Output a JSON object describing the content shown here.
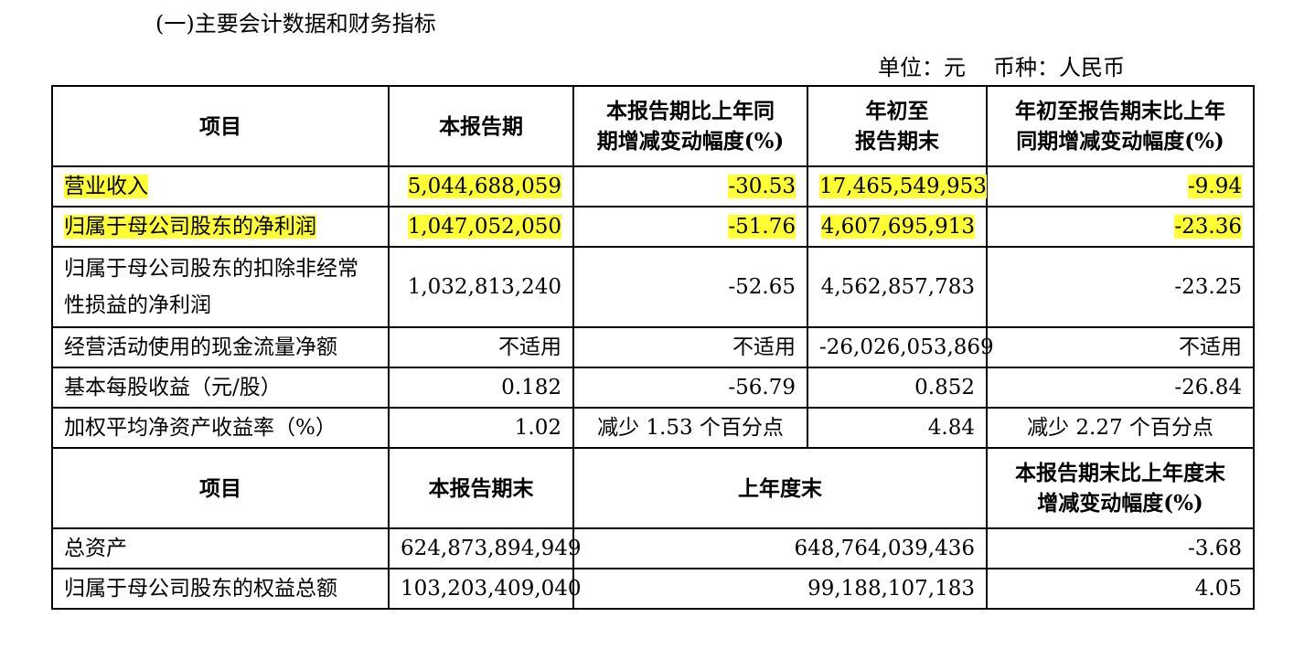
{
  "section_title": "(一)主要会计数据和财务指标",
  "unit": {
    "unit_label": "单位：元",
    "currency_label": "币种：人民币"
  },
  "header1": {
    "col1": "项目",
    "col2": "本报告期",
    "col3_line1": "本报告期比上年同",
    "col3_line2": "期增减变动幅度(%)",
    "col4_line1": "年初至",
    "col4_line2": "报告期末",
    "col5_line1": "年初至报告期末比上年",
    "col5_line2": "同期增减变动幅度(%)"
  },
  "rows": [
    {
      "label": "营业收入",
      "current": "5,044,688,059",
      "yoy": "-30.53",
      "ytd": "17,465,549,953",
      "ytd_yoy": "-9.94"
    },
    {
      "label": "归属于母公司股东的净利润",
      "current": "1,047,052,050",
      "yoy": "-51.76",
      "ytd": "4,607,695,913",
      "ytd_yoy": "-23.36"
    },
    {
      "label": "归属于母公司股东的扣除非经常性损益的净利润",
      "current": "1,032,813,240",
      "yoy": "-52.65",
      "ytd": "4,562,857,783",
      "ytd_yoy": "-23.25"
    },
    {
      "label": "经营活动使用的现金流量净额",
      "current": "不适用",
      "yoy": "不适用",
      "ytd": "-26,026,053,869",
      "ytd_yoy": "不适用"
    },
    {
      "label": "基本每股收益（元/股）",
      "current": "0.182",
      "yoy": "-56.79",
      "ytd": "0.852",
      "ytd_yoy": "-26.84"
    },
    {
      "label": "加权平均净资产收益率（%）",
      "current": "1.02",
      "yoy": "减少 1.53 个百分点",
      "ytd": "4.84",
      "ytd_yoy": "减少 2.27 个百分点"
    }
  ],
  "header2": {
    "col1": "项目",
    "col2": "本报告期末",
    "col3": "上年度末",
    "col4_line1": "本报告期末比上年度末",
    "col4_line2": "增减变动幅度(%)"
  },
  "rows2": [
    {
      "label": "总资产",
      "period_end": "624,873,894,949",
      "prior_year_end": "648,764,039,436",
      "change": "-3.68"
    },
    {
      "label": "归属于母公司股东的权益总额",
      "period_end": "103,203,409,040",
      "prior_year_end": "99,188,107,183",
      "change": "4.05"
    }
  ],
  "highlight_color": "#ffff33"
}
